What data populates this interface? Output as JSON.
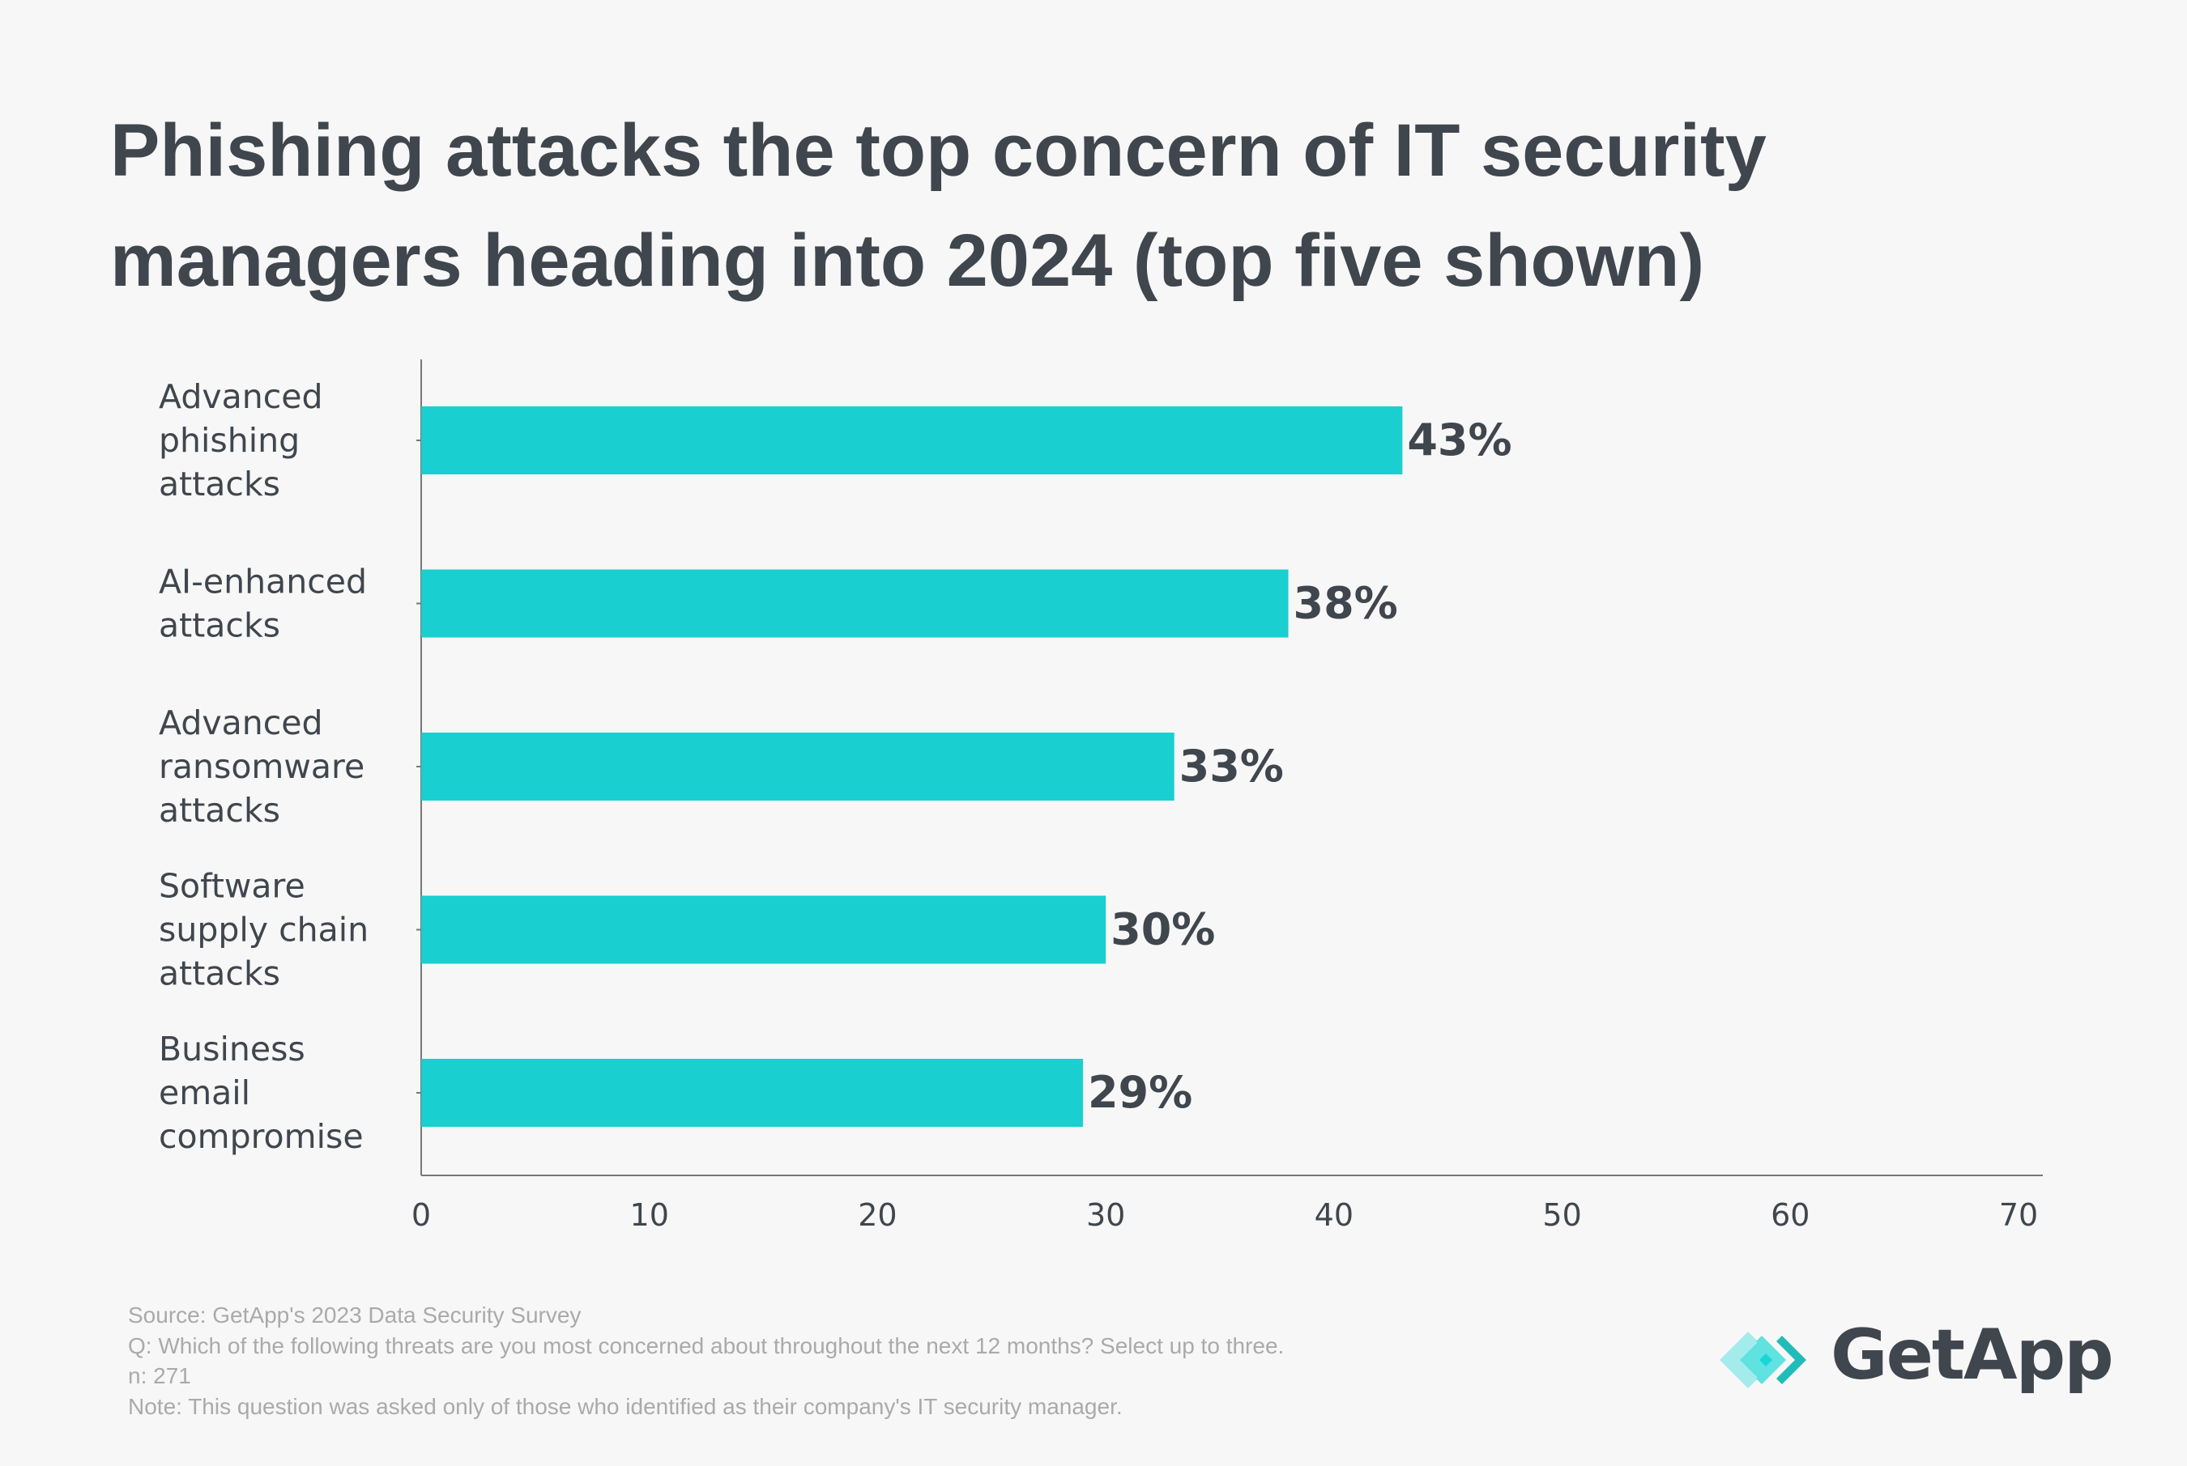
{
  "chart_data": {
    "type": "bar",
    "orientation": "horizontal",
    "title": "Phishing attacks the top concern of IT security managers heading into 2024 (top five shown)",
    "categories": [
      "Advanced phishing attacks",
      "AI-enhanced attacks",
      "Advanced ransomware attacks",
      "Software supply chain attacks",
      "Business email compromise"
    ],
    "category_lines": [
      [
        "Advanced",
        "phishing",
        "attacks"
      ],
      [
        "AI-enhanced",
        "attacks"
      ],
      [
        "Advanced",
        "ransomware",
        "attacks"
      ],
      [
        "Software",
        "supply chain",
        "attacks"
      ],
      [
        "Business",
        "email",
        "compromise"
      ]
    ],
    "values": [
      43,
      38,
      33,
      30,
      29
    ],
    "data_labels": [
      "43%",
      "38%",
      "33%",
      "30%",
      "29%"
    ],
    "xlim": [
      0,
      70
    ],
    "xticks": [
      0,
      10,
      20,
      30,
      40,
      50,
      60,
      70
    ],
    "xlabel": "",
    "ylabel": "",
    "grid": false,
    "bar_color": "#19cfcf",
    "text_color": "#40464d"
  },
  "footer": {
    "source": "Source: GetApp's 2023 Data Security Survey",
    "question": "Q: Which of the following threats are you most concerned about throughout the next 12 months? Select up to three.",
    "n": "n: 271",
    "note": "Note: This question was asked only of those who identified as their company's IT security manager."
  },
  "logo": {
    "text": "GetApp"
  }
}
